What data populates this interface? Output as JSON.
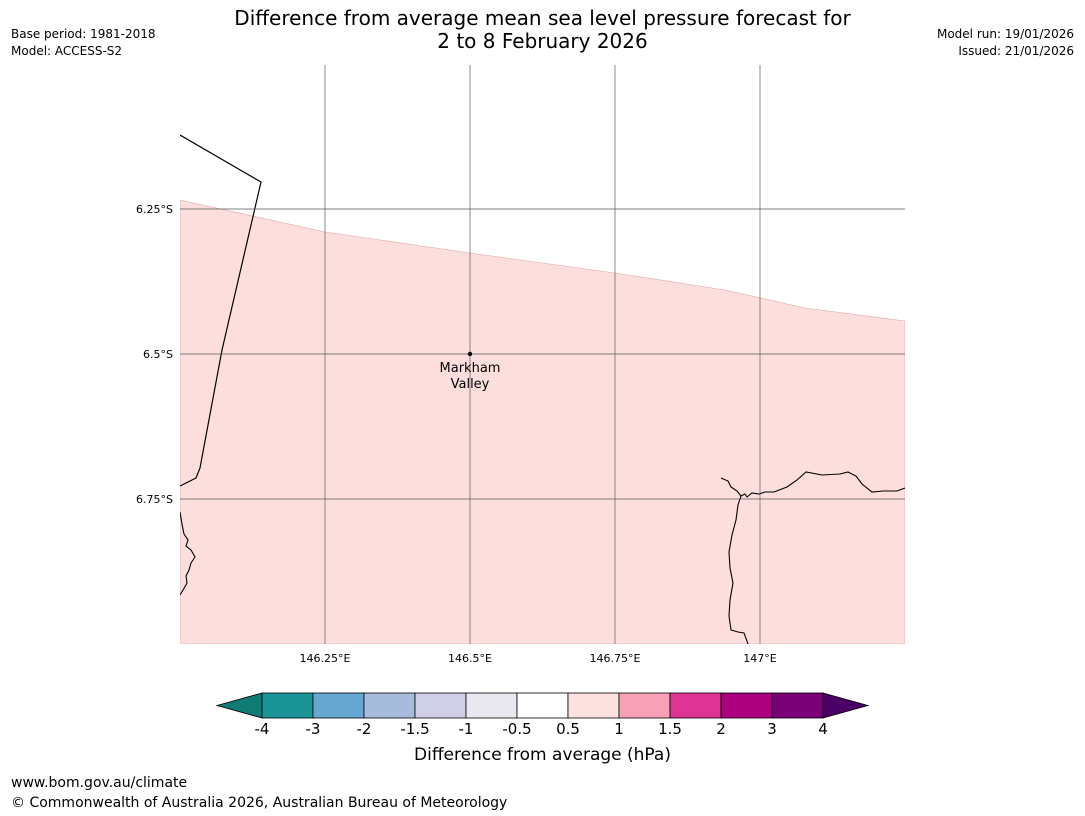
{
  "header": {
    "title_line1": "Difference from average mean sea level pressure forecast for",
    "title_line2": "2 to 8 February 2026",
    "base_period": "Base period: 1981-2018",
    "model": "Model: ACCESS-S2",
    "model_run": "Model run: 19/01/2026",
    "issued": "Issued: 21/01/2026"
  },
  "map": {
    "x_ticks": [
      "146.25°E",
      "146.5°E",
      "146.75°E",
      "147°E"
    ],
    "y_ticks": [
      "6.25°S",
      "6.5°S",
      "6.75°S"
    ],
    "place_label_line1": "Markham",
    "place_label_line2": "Valley",
    "anomaly_fill_color": "#fcdfdd",
    "anomaly_category": "0.5 to 1"
  },
  "colorbar": {
    "label": "Difference from average (hPa)",
    "ticks": [
      "-4",
      "-3",
      "-2",
      "-1.5",
      "-1",
      "-0.5",
      "0.5",
      "1",
      "1.5",
      "2",
      "3",
      "4"
    ],
    "colors": [
      "#0e7b74",
      "#1b9497",
      "#67a8d0",
      "#a7bcdc",
      "#d1cfe6",
      "#e9e8ee",
      "#ffffff",
      "#fde1df",
      "#f7a0b6",
      "#dd3496",
      "#ac017e",
      "#7a0077",
      "#4a0064"
    ]
  },
  "footer": {
    "url": "www.bom.gov.au/climate",
    "copyright": "© Commonwealth of Australia 2026, Australian Bureau of Meteorology"
  }
}
